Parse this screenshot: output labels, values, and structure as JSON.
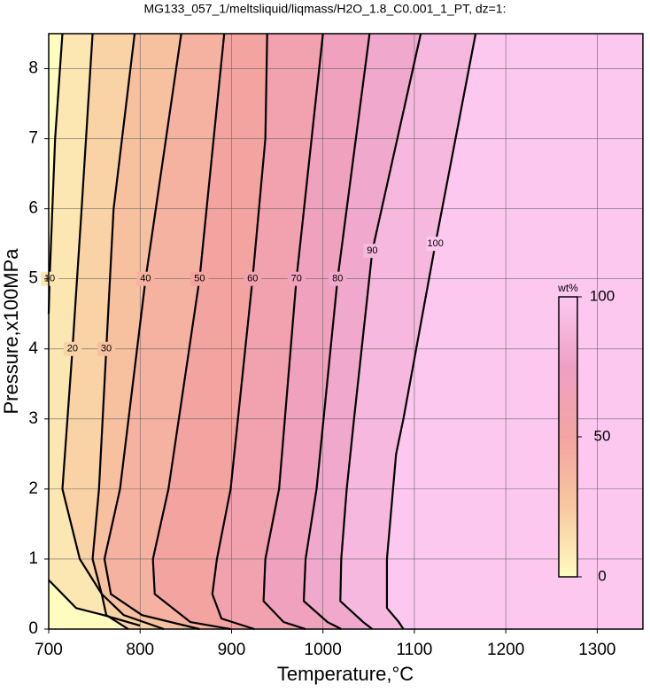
{
  "chart_data": {
    "type": "contour",
    "title": "MG133_057_1/meltsliquid/liqmass/H2O_1.8_C0.001_1_PT, dz=1:",
    "x_label": "Temperature,°C",
    "y_label": "Pressure,x100MPa",
    "xlim": [
      700,
      1350
    ],
    "xticks": [
      700,
      800,
      900,
      1000,
      1100,
      1200,
      1300
    ],
    "ylim": [
      0,
      8.5
    ],
    "yticks": [
      0,
      1,
      2,
      3,
      4,
      5,
      6,
      7,
      8
    ],
    "grid": true,
    "colormap": [
      {
        "value": 0,
        "color": "#fffcc0"
      },
      {
        "value": 25,
        "color": "#f8c8a0"
      },
      {
        "value": 50,
        "color": "#f4a4a0"
      },
      {
        "value": 75,
        "color": "#eea0c4"
      },
      {
        "value": 100,
        "color": "#fcc8f0"
      }
    ],
    "colorbar": {
      "label": "wt%",
      "lim": [
        0,
        100
      ],
      "ticks": [
        0,
        50,
        100
      ]
    },
    "contours": [
      {
        "level": 10,
        "x": [
          715,
          707,
          701,
          700,
          null,
          700,
          730,
          760,
          800
        ],
        "y": [
          8.5,
          7,
          5,
          4.5,
          null,
          0.7,
          0.3,
          0.2,
          0.05
        ]
      },
      {
        "level": 20,
        "x": [
          748,
          736,
          726,
          715,
          734,
          758,
          763,
          787
        ],
        "y": [
          8.5,
          6,
          4,
          2,
          1,
          0.5,
          0.2,
          0
        ]
      },
      {
        "level": 30,
        "x": [
          794,
          771,
          763,
          755,
          748,
          758,
          782,
          826
        ],
        "y": [
          8.5,
          6,
          4,
          2,
          1,
          0.5,
          0.2,
          0
        ]
      },
      {
        "level": 40,
        "x": [
          845,
          806,
          778,
          761,
          768,
          802,
          865
        ],
        "y": [
          8.5,
          5,
          2,
          1,
          0.5,
          0.2,
          0
        ]
      },
      {
        "level": 50,
        "x": [
          892,
          865,
          831,
          814,
          816,
          855,
          899
        ],
        "y": [
          8.5,
          5,
          2,
          1,
          0.5,
          0.1,
          0
        ]
      },
      {
        "level": 60,
        "x": [
          939,
          937,
          923,
          899,
          884,
          879,
          889,
          925
        ],
        "y": [
          8.5,
          7,
          5,
          2,
          1,
          0.5,
          0.15,
          0
        ]
      },
      {
        "level": 70,
        "x": [
          1000,
          971,
          952,
          937,
          935,
          957,
          981
        ],
        "y": [
          8.5,
          5,
          2,
          1,
          0.4,
          0.1,
          0
        ]
      },
      {
        "level": 80,
        "x": [
          1051,
          1016,
          993,
          981,
          979,
          1005,
          1020
        ],
        "y": [
          8.5,
          5,
          2,
          1,
          0.4,
          0.1,
          0
        ]
      },
      {
        "level": 90,
        "x": [
          1107,
          1054,
          1034,
          1026,
          1020,
          1019,
          1044,
          1054
        ],
        "y": [
          8.5,
          5.4,
          3,
          2,
          1,
          0.4,
          0.1,
          0
        ]
      },
      {
        "level": 100,
        "x": [
          1167,
          1123,
          1088,
          1080,
          1070,
          1070,
          1083,
          1088
        ],
        "y": [
          8.5,
          5.5,
          3,
          2.5,
          1,
          0.3,
          0.1,
          0
        ]
      }
    ]
  }
}
